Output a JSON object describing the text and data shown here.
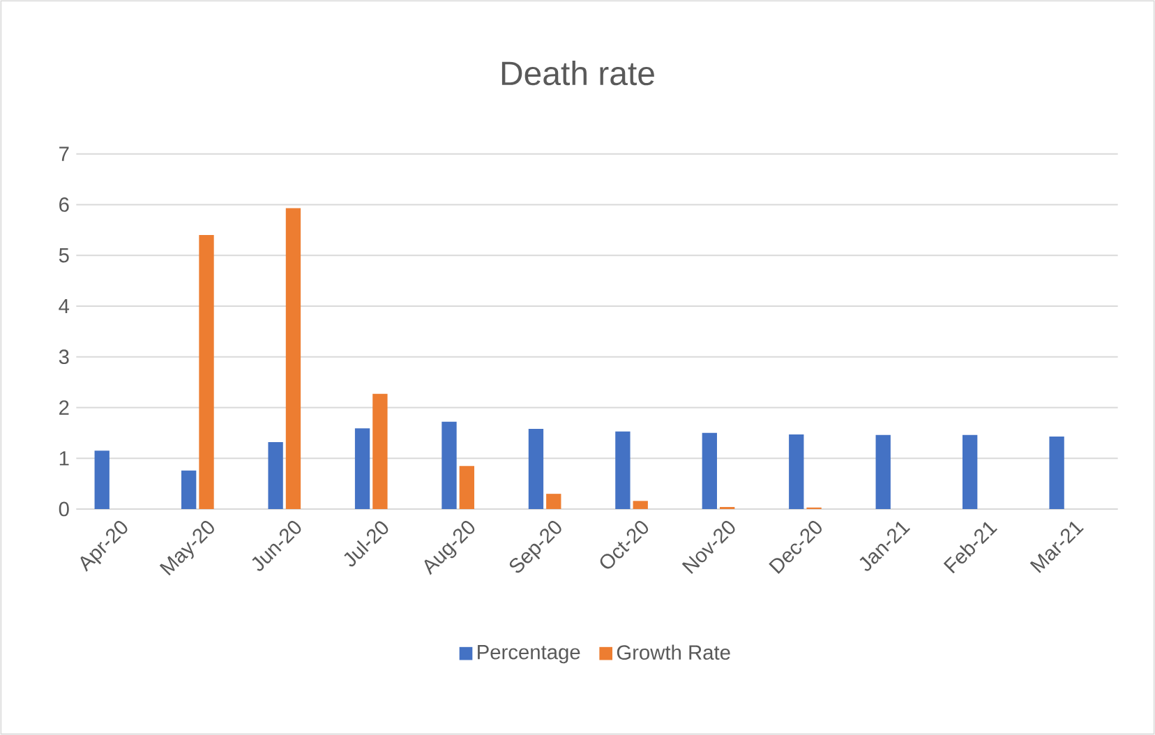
{
  "chart_data": {
    "type": "bar",
    "title": "Death rate",
    "categories": [
      "Apr-20",
      "May-20",
      "Jun-20",
      "Jul-20",
      "Aug-20",
      "Sep-20",
      "Oct-20",
      "Nov-20",
      "Dec-20",
      "Jan-21",
      "Feb-21",
      "Mar-21"
    ],
    "series": [
      {
        "name": "Percentage",
        "color": "#4472c4",
        "values": [
          1.15,
          0.76,
          1.32,
          1.59,
          1.72,
          1.58,
          1.53,
          1.5,
          1.47,
          1.46,
          1.46,
          1.43
        ]
      },
      {
        "name": "Growth Rate",
        "color": "#ed7d31",
        "values": [
          null,
          5.4,
          5.93,
          2.27,
          0.85,
          0.3,
          0.16,
          0.04,
          0.03,
          0,
          0,
          0
        ]
      },
      {
        "color": "#a5a5a5",
        "values": [
          null,
          null,
          null,
          null,
          null,
          null,
          null,
          null,
          null,
          null,
          null,
          null
        ]
      }
    ],
    "ylim": [
      0,
      7
    ],
    "yticks": [
      0,
      1,
      2,
      3,
      4,
      5,
      6,
      7
    ],
    "grid": "y",
    "legend": "bottom"
  }
}
